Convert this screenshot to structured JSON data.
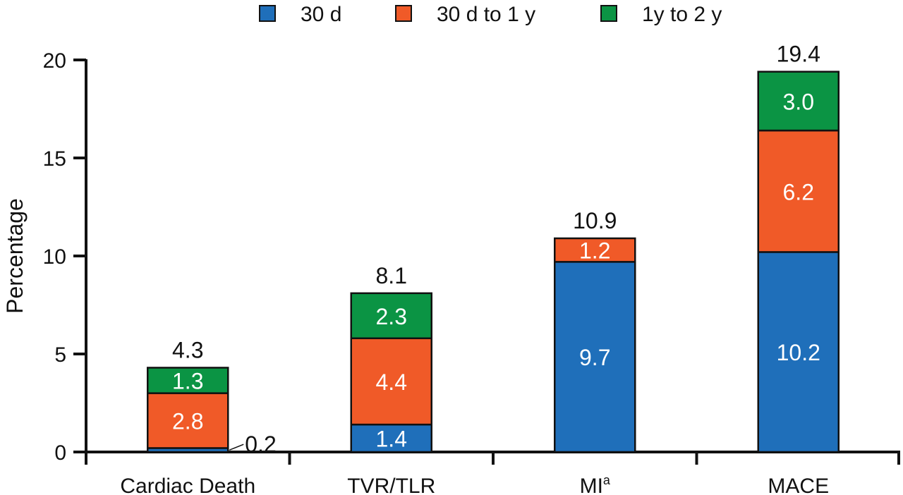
{
  "chart_data": {
    "type": "bar",
    "stacked": true,
    "title": "",
    "xlabel": "",
    "ylabel": "Percentage",
    "ylim": [
      0,
      20
    ],
    "yticks": [
      0,
      5,
      10,
      15,
      20
    ],
    "categories": [
      "Cardiac Death",
      "TVR/TLR",
      "MI",
      "MACE"
    ],
    "category_superscripts": [
      "",
      "",
      "a",
      ""
    ],
    "series": [
      {
        "name": "30 d",
        "color": "#1f6fba",
        "values": [
          0.2,
          1.4,
          9.7,
          10.2
        ],
        "labels": [
          "0.2",
          "1.4",
          "9.7",
          "10.2"
        ]
      },
      {
        "name": "30 d to 1 y",
        "color": "#f05a28",
        "values": [
          2.8,
          4.4,
          1.2,
          6.2
        ],
        "labels": [
          "2.8",
          "4.4",
          "1.2",
          "6.2"
        ]
      },
      {
        "name": "1y to 2 y",
        "color": "#0b9444",
        "values": [
          1.3,
          2.3,
          0,
          3.0
        ],
        "labels": [
          "1.3",
          "2.3",
          "",
          "3.0"
        ]
      }
    ],
    "totals": [
      4.3,
      8.1,
      10.9,
      19.4
    ],
    "total_labels": [
      "4.3",
      "8.1",
      "10.9",
      "19.4"
    ],
    "legend_position": "top-center",
    "grid": false
  }
}
